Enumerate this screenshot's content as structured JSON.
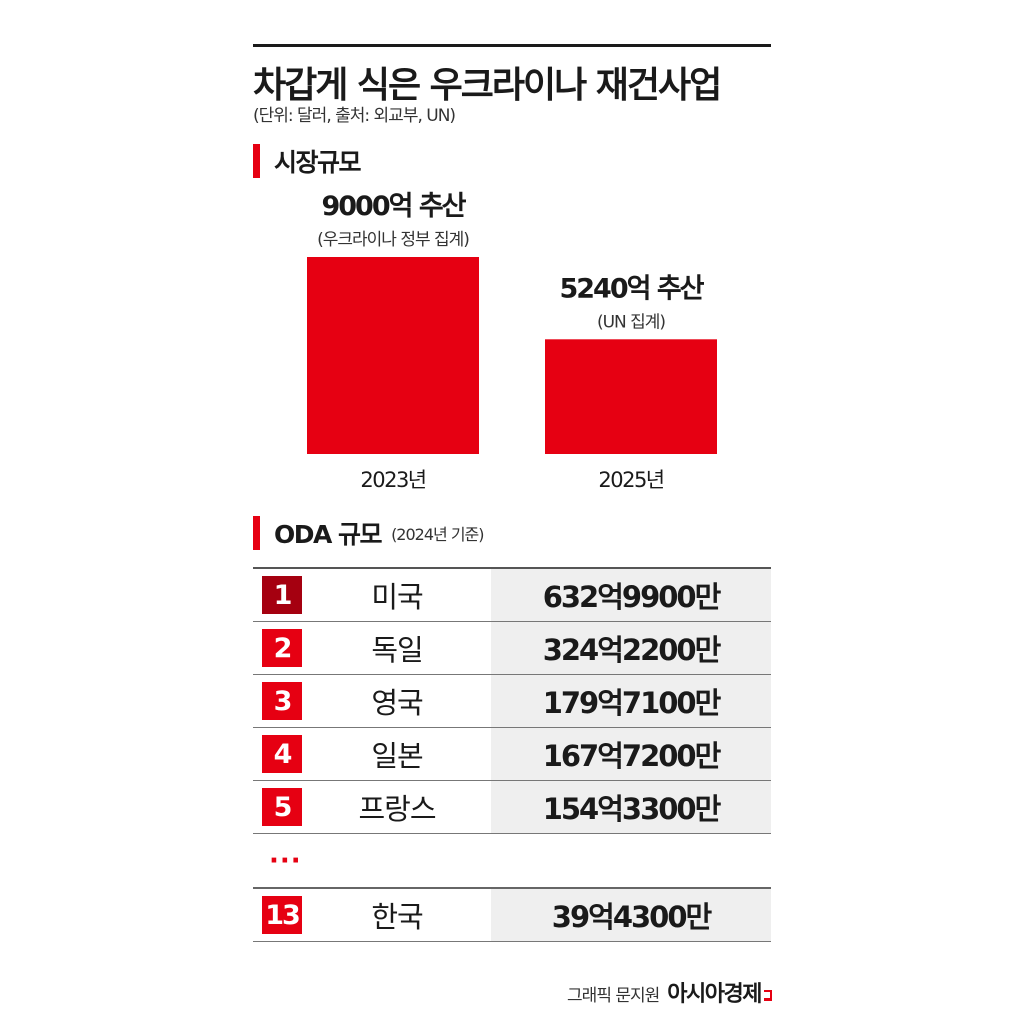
{
  "title": "차갑게 식은 우크라이나 재건사업",
  "subtitle": "(단위: 달러, 출처: 외교부, UN)",
  "section_market": "시장규모",
  "section_oda": "ODA 규모",
  "section_oda_note": "(2024년 기준)",
  "chart_data": {
    "type": "bar",
    "categories": [
      "2023년",
      "2025년"
    ],
    "values": [
      9000,
      5240
    ],
    "data_labels": [
      "9000억 추산",
      "5240억 추산"
    ],
    "data_notes": [
      "(우크라이나 정부 집계)",
      "(UN 집계)"
    ],
    "ylim": [
      0,
      9000
    ],
    "color": "#e60012",
    "grid": false,
    "legend": "none"
  },
  "oda_table": {
    "rows": [
      {
        "rank": "1",
        "country": "미국",
        "amount": "632억9900만"
      },
      {
        "rank": "2",
        "country": "독일",
        "amount": "324억2200만"
      },
      {
        "rank": "3",
        "country": "영국",
        "amount": "179억7100만"
      },
      {
        "rank": "4",
        "country": "일본",
        "amount": "167억7200만"
      },
      {
        "rank": "5",
        "country": "프랑스",
        "amount": "154억3300만"
      }
    ],
    "ellipsis": "···",
    "korea": {
      "rank": "13",
      "country": "한국",
      "amount": "39억4300만"
    }
  },
  "credit": "그래픽 문지원",
  "logo": "아시아경제",
  "colors": {
    "accent": "#e60012",
    "rank_first": "#a50010",
    "value_bg": "#efefef"
  }
}
